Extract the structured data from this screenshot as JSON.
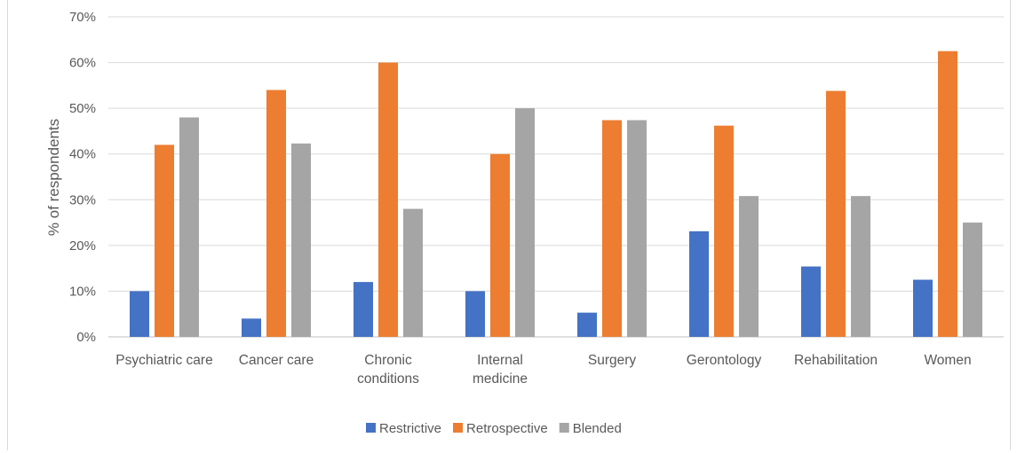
{
  "chart_data": {
    "type": "bar",
    "ylabel": "% of respondents",
    "ylim": [
      0,
      70
    ],
    "yticks": [
      "0%",
      "10%",
      "20%",
      "30%",
      "40%",
      "50%",
      "60%",
      "70%"
    ],
    "grid": true,
    "legend_position": "bottom",
    "categories": [
      [
        "Psychiatric care"
      ],
      [
        "Cancer care"
      ],
      [
        "Chronic",
        "conditions"
      ],
      [
        "Internal",
        "medicine"
      ],
      [
        "Surgery"
      ],
      [
        "Gerontology"
      ],
      [
        "Rehabilitation"
      ],
      [
        "Women"
      ]
    ],
    "series": [
      {
        "name": "Restrictive",
        "color": "#4472c4",
        "values": [
          10,
          4,
          12,
          10,
          5.3,
          23.1,
          15.4,
          12.5
        ]
      },
      {
        "name": "Retrospective",
        "color": "#ed7d31",
        "values": [
          42,
          54,
          60,
          40,
          47.4,
          46.2,
          53.8,
          62.5
        ]
      },
      {
        "name": "Blended",
        "color": "#a5a5a5",
        "values": [
          48,
          42.3,
          28,
          50,
          47.4,
          30.8,
          30.8,
          25
        ]
      }
    ]
  }
}
